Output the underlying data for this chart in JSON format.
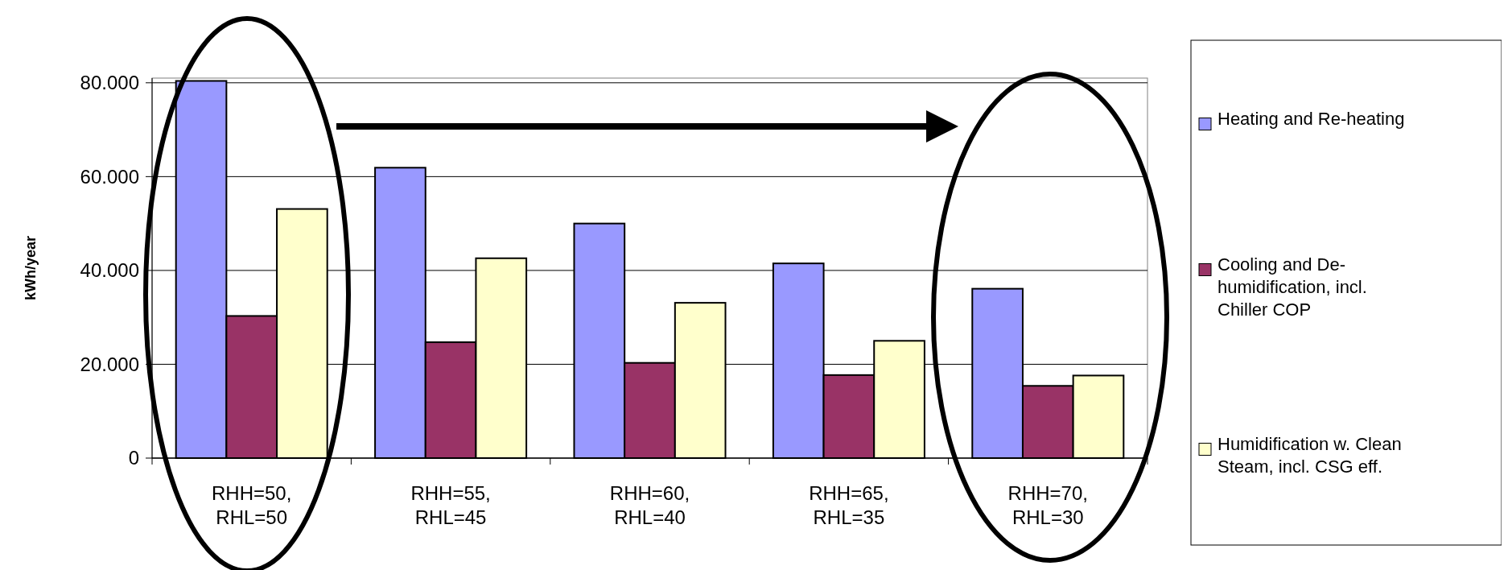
{
  "chart_data": {
    "type": "bar",
    "ylabel": "kWh/year",
    "categories": [
      "RHH=50, RHL=50",
      "RHH=55, RHL=45",
      "RHH=60, RHL=40",
      "RHH=65, RHL=35",
      "RHH=70, RHL=30"
    ],
    "series": [
      {
        "name": "Heating and Re-heating",
        "color": "#9999ff",
        "values": [
          80400,
          61900,
          50000,
          41500,
          36100
        ]
      },
      {
        "name": "Cooling and De-humidification, incl. Chiller COP",
        "color": "#993366",
        "values": [
          30300,
          24700,
          20300,
          17700,
          15400
        ]
      },
      {
        "name": "Humidification w. Clean Steam, incl. CSG eff.",
        "color": "#ffffcc",
        "values": [
          53100,
          42600,
          33100,
          25000,
          17600
        ]
      }
    ],
    "ylim": [
      0,
      81000
    ],
    "yticks": [
      0,
      {
        "value": 20000,
        "label": "20.000"
      },
      {
        "value": 40000,
        "label": "40.000"
      },
      {
        "value": 60000,
        "label": "60.000"
      },
      {
        "value": 80000,
        "label": "80.000"
      }
    ],
    "grid": "y",
    "legend": "right"
  }
}
